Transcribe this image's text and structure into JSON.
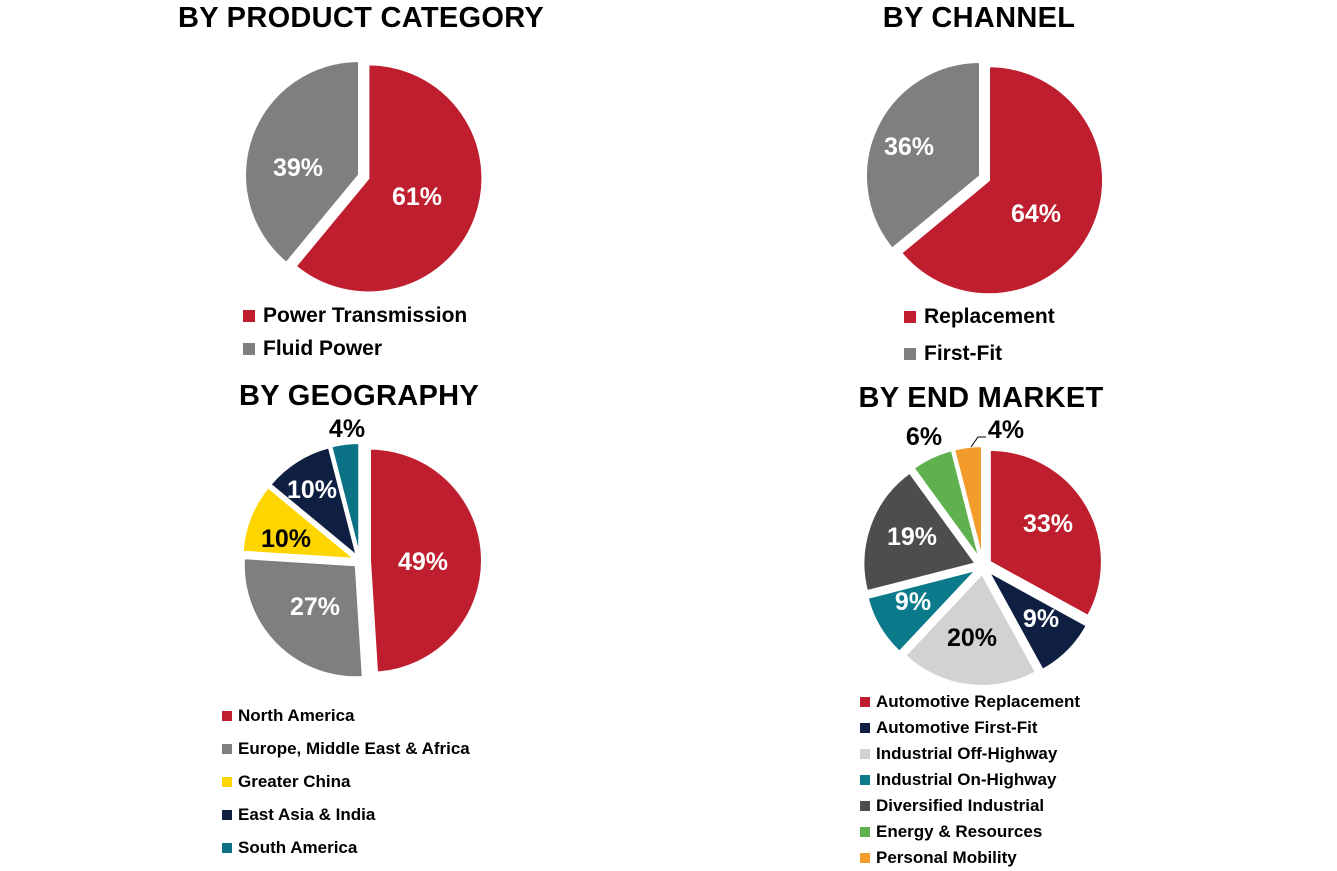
{
  "chart_data": [
    {
      "id": "product",
      "type": "pie",
      "title": "BY PRODUCT CATEGORY",
      "categories": [
        "Power Transmission",
        "Fluid Power"
      ],
      "values": [
        61,
        39
      ],
      "labels": [
        "61%",
        "39%"
      ],
      "colors": [
        "#be1e2d",
        "#7f7f7f"
      ],
      "label_colors": [
        "#ffffff",
        "#ffffff"
      ]
    },
    {
      "id": "channel",
      "type": "pie",
      "title": "BY CHANNEL",
      "categories": [
        "Replacement",
        "First-Fit"
      ],
      "values": [
        64,
        36
      ],
      "labels": [
        "64%",
        "36%"
      ],
      "colors": [
        "#be1e2d",
        "#7f7f7f"
      ],
      "label_colors": [
        "#ffffff",
        "#ffffff"
      ]
    },
    {
      "id": "geography",
      "type": "pie",
      "title": "BY GEOGRAPHY",
      "categories": [
        "North America",
        "Europe, Middle East & Africa",
        "Greater China",
        "East Asia & India",
        "South America"
      ],
      "values": [
        49,
        27,
        10,
        10,
        4
      ],
      "labels": [
        "49%",
        "27%",
        "10%",
        "10%",
        "4%"
      ],
      "colors": [
        "#be1e2d",
        "#7f7f7f",
        "#ffd500",
        "#0e1f42",
        "#0b7285"
      ],
      "label_colors": [
        "#ffffff",
        "#ffffff",
        "#000000",
        "#ffffff",
        "#000000"
      ]
    },
    {
      "id": "end-market",
      "type": "pie",
      "title": "BY END MARKET",
      "categories": [
        "Automotive Replacement",
        "Automotive First-Fit",
        "Industrial Off-Highway",
        "Industrial On-Highway",
        "Diversified Industrial",
        "Energy & Resources",
        "Personal Mobility"
      ],
      "values": [
        33,
        9,
        20,
        9,
        19,
        6,
        4
      ],
      "labels": [
        "33%",
        "9%",
        "20%",
        "9%",
        "19%",
        "6%",
        "4%"
      ],
      "colors": [
        "#be1e2d",
        "#0e1f42",
        "#d0d2d3",
        "#0b7a8a",
        "#4d4d4f",
        "#5eb14e",
        "#f39c2c"
      ],
      "label_colors": [
        "#ffffff",
        "#ffffff",
        "#000000",
        "#ffffff",
        "#ffffff",
        "#000000",
        "#000000"
      ]
    }
  ]
}
